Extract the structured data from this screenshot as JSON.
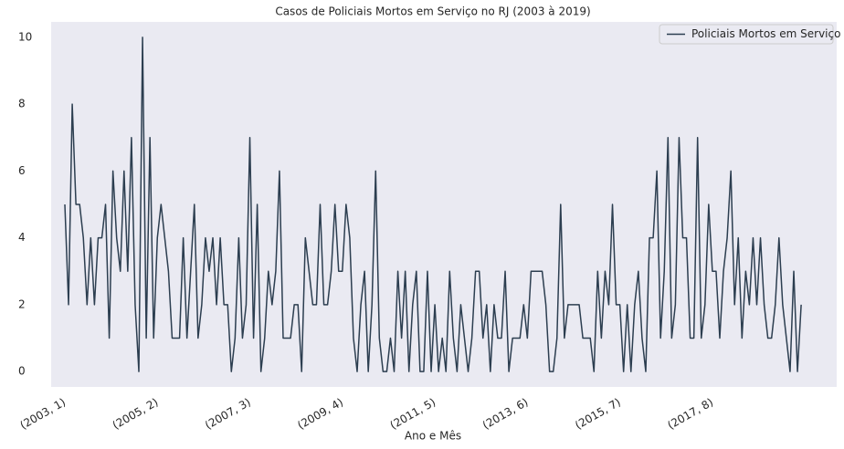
{
  "chart_data": {
    "type": "line",
    "title": "Casos de Policiais Mortos em Serviço no RJ (2003 à 2019)",
    "x_label": "Ano e Mês",
    "categories": [
      "(2003, 1)",
      null,
      null,
      null,
      null,
      null,
      null,
      null,
      null,
      null,
      null,
      null,
      null,
      null,
      null,
      null,
      null,
      null,
      null,
      null,
      null,
      null,
      null,
      null,
      null,
      "(2005, 2)",
      null,
      null,
      null,
      null,
      null,
      null,
      null,
      null,
      null,
      null,
      null,
      null,
      null,
      null,
      null,
      null,
      null,
      null,
      null,
      null,
      null,
      null,
      null,
      null,
      "(2007, 3)",
      null,
      null,
      null,
      null,
      null,
      null,
      null,
      null,
      null,
      null,
      null,
      null,
      null,
      null,
      null,
      null,
      null,
      null,
      null,
      null,
      null,
      null,
      null,
      null,
      "(2009, 4)",
      null,
      null,
      null,
      null,
      null,
      null,
      null,
      null,
      null,
      null,
      null,
      null,
      null,
      null,
      null,
      null,
      null,
      null,
      null,
      null,
      null,
      null,
      null,
      null,
      "(2011, 5)",
      null,
      null,
      null,
      null,
      null,
      null,
      null,
      null,
      null,
      null,
      null,
      null,
      null,
      null,
      null,
      null,
      null,
      null,
      null,
      null,
      null,
      null,
      null,
      null,
      "(2013, 6)",
      null,
      null,
      null,
      null,
      null,
      null,
      null,
      null,
      null,
      null,
      null,
      null,
      null,
      null,
      null,
      null,
      null,
      null,
      null,
      null,
      null,
      null,
      null,
      null,
      "(2015, 7)",
      null,
      null,
      null,
      null,
      null,
      null,
      null,
      null,
      null,
      null,
      null,
      null,
      null,
      null,
      null,
      null,
      null,
      null,
      null,
      null,
      null,
      null,
      null,
      null,
      "(2017, 8)",
      null,
      null,
      null,
      null,
      null,
      null,
      null,
      null,
      null,
      null,
      null,
      null,
      null,
      null,
      null,
      null,
      null,
      null,
      null,
      null,
      null,
      null,
      null,
      null
    ],
    "series": [
      {
        "name": "Policiais Mortos em Serviço",
        "color": "#2c3e50",
        "values": [
          5,
          2,
          8,
          5,
          5,
          4,
          2,
          4,
          2,
          4,
          4,
          5,
          1,
          6,
          4,
          3,
          6,
          3,
          7,
          2,
          0,
          10,
          1,
          7,
          1,
          4,
          5,
          4,
          3,
          1,
          1,
          1,
          4,
          1,
          3,
          5,
          1,
          2,
          4,
          3,
          4,
          2,
          4,
          2,
          2,
          0,
          1,
          4,
          1,
          2,
          7,
          1,
          5,
          0,
          1,
          3,
          2,
          3,
          6,
          1,
          1,
          1,
          2,
          2,
          0,
          4,
          3,
          2,
          2,
          5,
          2,
          2,
          3,
          5,
          3,
          3,
          5,
          4,
          1,
          0,
          2,
          3,
          0,
          2,
          6,
          1,
          0,
          0,
          1,
          0,
          3,
          1,
          3,
          0,
          2,
          3,
          0,
          0,
          3,
          0,
          2,
          0,
          1,
          0,
          3,
          1,
          0,
          2,
          1,
          0,
          1,
          3,
          3,
          1,
          2,
          0,
          2,
          1,
          1,
          3,
          0,
          1,
          1,
          1,
          2,
          1,
          3,
          3,
          3,
          3,
          2,
          0,
          0,
          1,
          5,
          1,
          2,
          2,
          2,
          2,
          1,
          1,
          1,
          0,
          3,
          1,
          3,
          2,
          5,
          2,
          2,
          0,
          2,
          0,
          2,
          3,
          1,
          0,
          4,
          4,
          6,
          1,
          3,
          7,
          1,
          2,
          7,
          4,
          4,
          1,
          1,
          7,
          1,
          2,
          5,
          3,
          3,
          1,
          3,
          4,
          6,
          2,
          4,
          1,
          3,
          2,
          4,
          2,
          4,
          2,
          1,
          1,
          2,
          4,
          2,
          1,
          0,
          3,
          0,
          2
        ]
      }
    ],
    "ylim": [
      -0.46,
      10.46
    ],
    "yticks": [
      0,
      2,
      4,
      6,
      8,
      10
    ],
    "grid": false,
    "legend": "upper right"
  }
}
